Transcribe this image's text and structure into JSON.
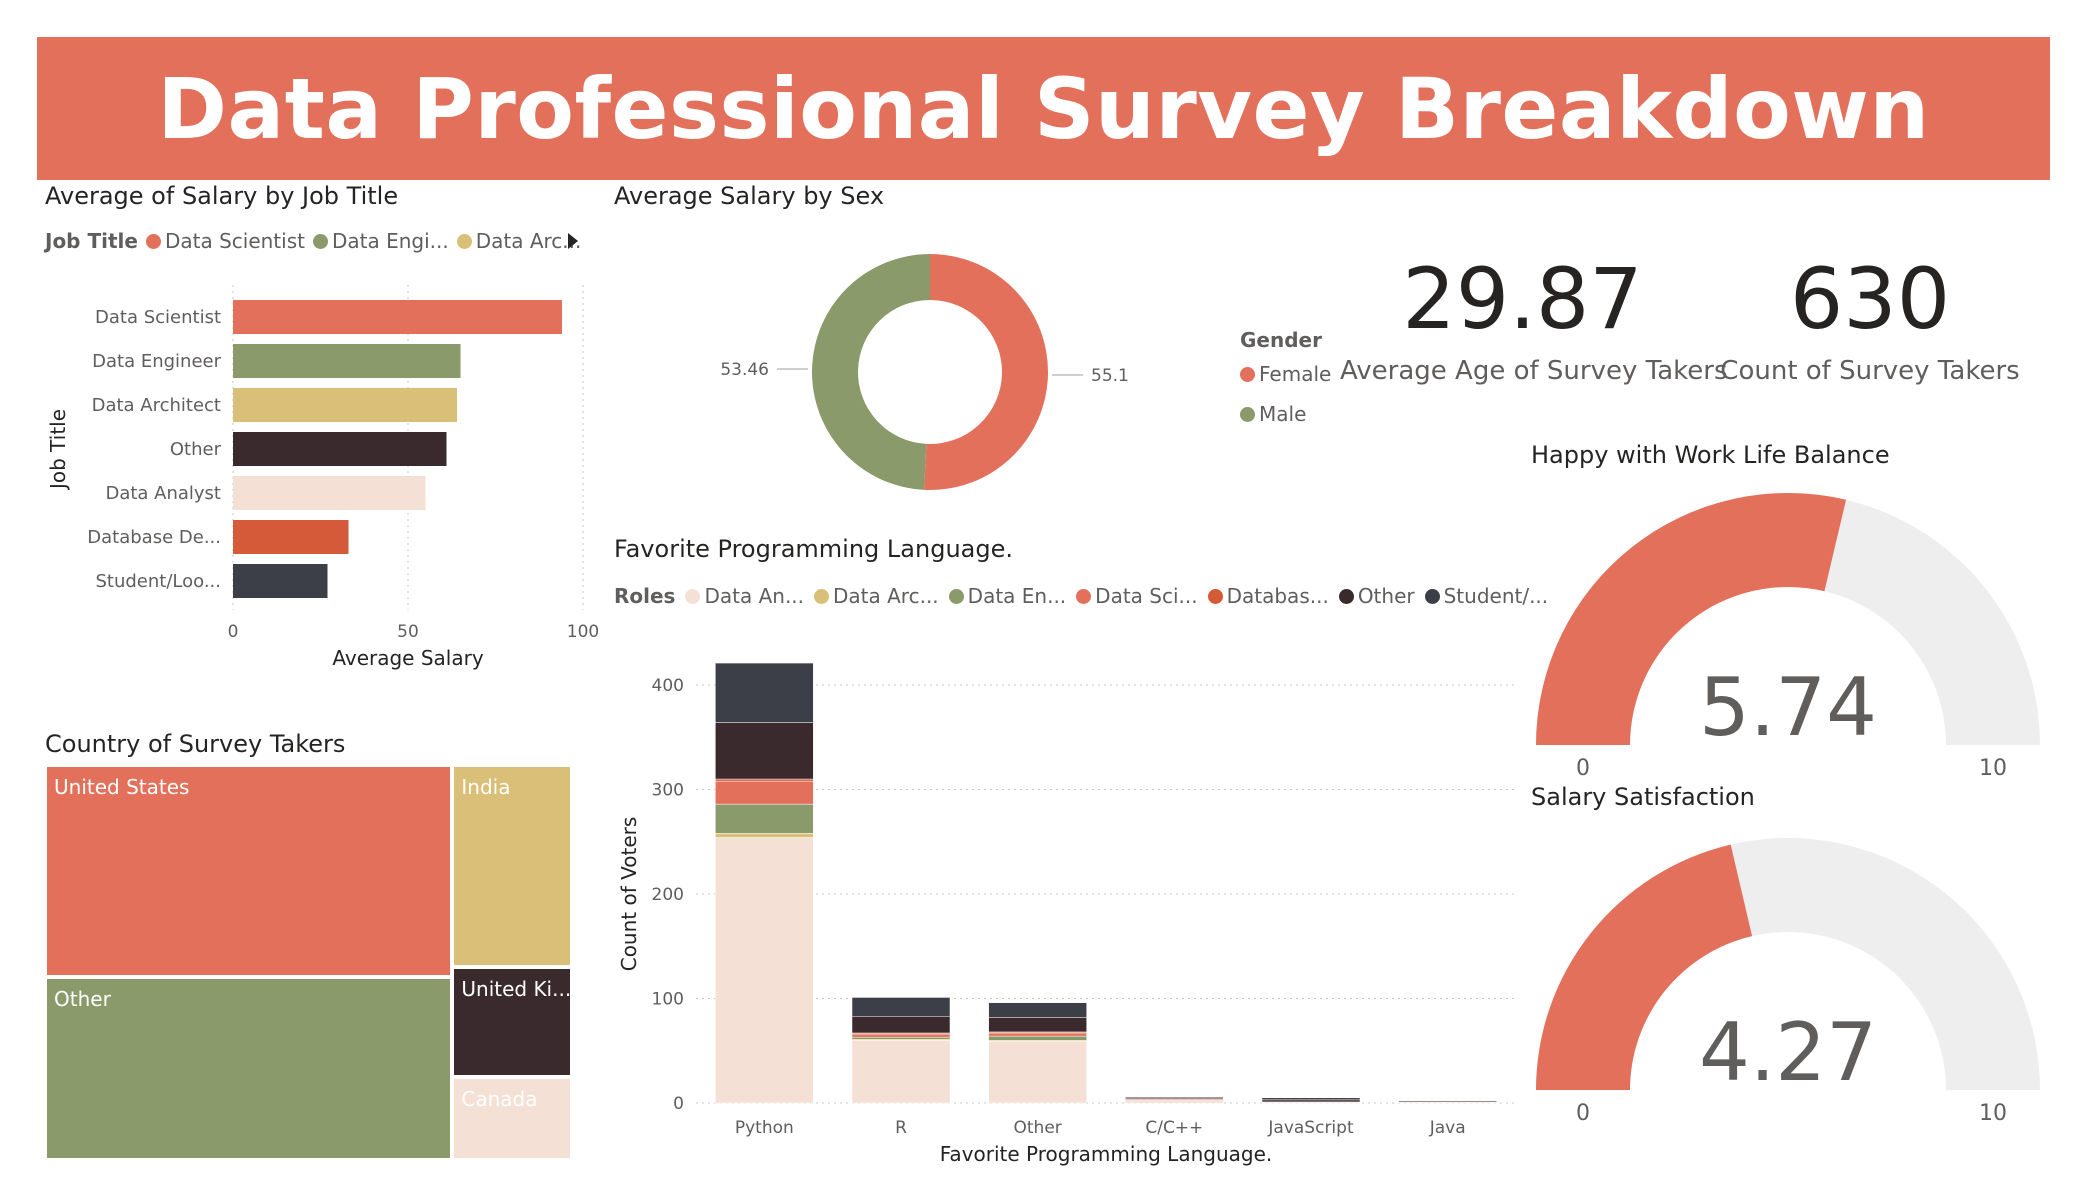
{
  "header": {
    "title": "Data Professional Survey Breakdown"
  },
  "colors": {
    "accent": "#e3705b",
    "data_scientist": "#e3705b",
    "data_engineer": "#8a9a6a",
    "data_architect": "#d9bf77",
    "other": "#3a2a2e",
    "data_analyst": "#f4e0d4",
    "database_dev": "#d45a3a",
    "student": "#3d3f48",
    "gauge_bg": "#eeeeee"
  },
  "salary_by_job": {
    "title": "Average of Salary by Job Title",
    "legend_title": "Job Title",
    "legend_items": [
      "Data Scientist",
      "Data Engi...",
      "Data Arc..."
    ],
    "legend_more_icon": "triangle-right-icon"
  },
  "salary_by_sex": {
    "title": "Average Salary by Sex",
    "legend_title": "Gender"
  },
  "cards": {
    "avg_age": {
      "value": "29.87",
      "label": "Average Age of Survey Takers"
    },
    "count": {
      "value": "630",
      "label": "Count of Survey Takers"
    }
  },
  "country": {
    "title": "Country of Survey Takers"
  },
  "languages": {
    "title": "Favorite Programming Language.",
    "legend_title": "Roles",
    "legend_items": [
      "Data An...",
      "Data Arc...",
      "Data En...",
      "Data Sci...",
      "Databas...",
      "Other",
      "Student/..."
    ]
  },
  "gauges": {
    "work_life": {
      "title": "Happy with Work Life Balance",
      "value": 5.74,
      "value_text": "5.74",
      "min": 0,
      "max": 10,
      "min_text": "0",
      "max_text": "10"
    },
    "salary_sat": {
      "title": "Salary Satisfaction",
      "value": 4.27,
      "value_text": "4.27",
      "min": 0,
      "max": 10,
      "min_text": "0",
      "max_text": "10"
    }
  },
  "chart_data": [
    {
      "type": "bar",
      "orientation": "horizontal",
      "title": "Average of Salary by Job Title",
      "categories": [
        "Data Scientist",
        "Data Engineer",
        "Data Architect",
        "Other",
        "Data Analyst",
        "Database De...",
        "Student/Loo..."
      ],
      "values": [
        94,
        65,
        64,
        61,
        55,
        33,
        27
      ],
      "colors": [
        "#e3705b",
        "#8a9a6a",
        "#d9bf77",
        "#3a2a2e",
        "#f4e0d4",
        "#d45a3a",
        "#3d3f48"
      ],
      "xlabel": "Average Salary",
      "ylabel": "Job Title",
      "xlim": [
        0,
        100
      ],
      "xticks": [
        0,
        50,
        100
      ],
      "grid": true
    },
    {
      "type": "pie",
      "donut": true,
      "title": "Average Salary by Sex",
      "series": [
        {
          "name": "Female",
          "value": 55.19,
          "label": "55.19",
          "color": "#e3705b"
        },
        {
          "name": "Male",
          "value": 53.46,
          "label": "53.46",
          "color": "#8a9a6a"
        }
      ]
    },
    {
      "type": "treemap",
      "title": "Country of Survey Takers",
      "items": [
        {
          "name": "United States",
          "value": 261,
          "color": "#e3705b"
        },
        {
          "name": "Other",
          "value": 226,
          "color": "#8a9a6a"
        },
        {
          "name": "India",
          "value": 73,
          "color": "#d9bf77"
        },
        {
          "name": "United Ki...",
          "value": 40,
          "color": "#3a2a2e"
        },
        {
          "name": "Canada",
          "value": 30,
          "color": "#f4e0d4"
        }
      ]
    },
    {
      "type": "bar",
      "stacked": true,
      "title": "Favorite Programming Language.",
      "categories": [
        "Python",
        "R",
        "Other",
        "C/C++",
        "JavaScript",
        "Java"
      ],
      "series": [
        {
          "name": "Data An...",
          "color": "#f4e0d4",
          "values": [
            254,
            60,
            59,
            3,
            1,
            1
          ]
        },
        {
          "name": "Data Arc...",
          "color": "#d9bf77",
          "values": [
            4,
            1,
            1,
            0,
            0,
            0
          ]
        },
        {
          "name": "Data En...",
          "color": "#8a9a6a",
          "values": [
            28,
            2,
            4,
            0,
            0,
            0
          ]
        },
        {
          "name": "Data Sci...",
          "color": "#e3705b",
          "values": [
            22,
            3,
            3,
            1,
            0,
            0
          ]
        },
        {
          "name": "Databas...",
          "color": "#d45a3a",
          "values": [
            2,
            1,
            1,
            0,
            0,
            0
          ]
        },
        {
          "name": "Other",
          "color": "#3a2a2e",
          "values": [
            54,
            16,
            14,
            1,
            2,
            1
          ]
        },
        {
          "name": "Student/...",
          "color": "#3d3f48",
          "values": [
            57,
            18,
            14,
            1,
            2,
            0
          ]
        }
      ],
      "xlabel": "Favorite Programming Language.",
      "ylabel": "Count of Voters",
      "ylim": [
        0,
        400
      ],
      "yticks": [
        0,
        100,
        200,
        300,
        400
      ],
      "grid": true
    }
  ]
}
